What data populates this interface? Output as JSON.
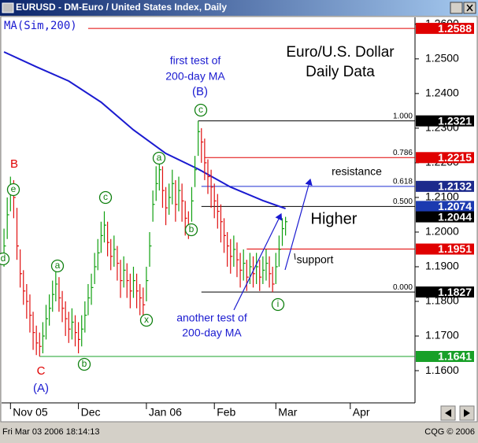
{
  "window_title": "EURUSD - DM-Euro / United States Index, Daily",
  "status": {
    "datetime": "Fri Mar 03 2006 18:14:13",
    "copyright": "CQG © 2006"
  },
  "chart_data": {
    "type": "ohlc",
    "study_label": "MA(Sim,200)",
    "x": [
      0,
      1,
      2,
      3,
      4,
      5,
      6,
      7,
      8,
      9,
      10,
      11,
      12,
      13,
      14,
      15,
      16,
      17,
      18,
      19,
      20,
      21,
      22,
      23,
      24,
      25,
      26,
      27,
      28,
      29,
      30,
      31,
      32,
      33,
      34,
      35,
      36,
      37,
      38,
      39,
      40,
      41,
      42,
      43,
      44,
      45,
      46,
      47,
      48,
      49,
      50,
      51,
      52,
      53,
      54,
      55,
      56,
      57,
      58,
      59,
      60,
      61,
      62,
      63,
      64,
      65,
      66,
      67,
      68,
      69,
      70,
      71,
      72,
      73,
      74,
      75,
      76,
      77,
      78,
      79,
      80,
      81,
      82,
      83,
      84,
      85,
      86,
      87
    ],
    "high": [
      1.201,
      1.21,
      1.216,
      1.215,
      1.207,
      1.195,
      1.189,
      1.185,
      1.182,
      1.177,
      1.173,
      1.171,
      1.174,
      1.179,
      1.182,
      1.186,
      1.189,
      1.187,
      1.183,
      1.18,
      1.177,
      1.178,
      1.176,
      1.174,
      1.176,
      1.18,
      1.185,
      1.188,
      1.194,
      1.198,
      1.203,
      1.206,
      1.203,
      1.198,
      1.199,
      1.196,
      1.192,
      1.193,
      1.191,
      1.188,
      1.19,
      1.188,
      1.185,
      1.184,
      1.19,
      1.2,
      1.212,
      1.219,
      1.222,
      1.219,
      1.213,
      1.214,
      1.218,
      1.215,
      1.216,
      1.214,
      1.209,
      1.206,
      1.213,
      1.222,
      1.2321,
      1.23,
      1.227,
      1.221,
      1.218,
      1.214,
      1.211,
      1.208,
      1.204,
      1.2,
      1.198,
      1.199,
      1.197,
      1.194,
      1.195,
      1.192,
      1.194,
      1.193,
      1.194,
      1.192,
      1.193,
      1.195,
      1.193,
      1.19,
      1.194,
      1.199,
      1.204,
      1.2044
    ],
    "low": [
      1.19,
      1.198,
      1.206,
      1.204,
      1.192,
      1.184,
      1.179,
      1.175,
      1.171,
      1.166,
      1.1645,
      1.1641,
      1.165,
      1.169,
      1.173,
      1.177,
      1.18,
      1.177,
      1.174,
      1.17,
      1.168,
      1.169,
      1.167,
      1.165,
      1.167,
      1.171,
      1.176,
      1.179,
      1.185,
      1.189,
      1.194,
      1.197,
      1.193,
      1.189,
      1.19,
      1.186,
      1.181,
      1.184,
      1.181,
      1.178,
      1.181,
      1.178,
      1.176,
      1.175,
      1.18,
      1.19,
      1.203,
      1.209,
      1.212,
      1.207,
      1.202,
      1.205,
      1.208,
      1.203,
      1.206,
      1.203,
      1.199,
      1.198,
      1.203,
      1.213,
      1.222,
      1.22,
      1.215,
      1.211,
      1.207,
      1.204,
      1.201,
      1.197,
      1.194,
      1.19,
      1.188,
      1.19,
      1.187,
      1.184,
      1.186,
      1.183,
      1.185,
      1.184,
      1.185,
      1.183,
      1.185,
      1.186,
      1.184,
      1.1827,
      1.185,
      1.19,
      1.196,
      1.199
    ],
    "close": [
      1.196,
      1.205,
      1.212,
      1.21,
      1.196,
      1.188,
      1.183,
      1.18,
      1.176,
      1.171,
      1.168,
      1.167,
      1.17,
      1.175,
      1.178,
      1.182,
      1.185,
      1.181,
      1.178,
      1.175,
      1.172,
      1.174,
      1.171,
      1.169,
      1.172,
      1.176,
      1.181,
      1.184,
      1.19,
      1.194,
      1.199,
      1.202,
      1.197,
      1.193,
      1.195,
      1.191,
      1.186,
      1.189,
      1.186,
      1.183,
      1.186,
      1.183,
      1.181,
      1.179,
      1.186,
      1.196,
      1.208,
      1.214,
      1.218,
      1.212,
      1.207,
      1.21,
      1.214,
      1.208,
      1.212,
      1.209,
      1.204,
      1.202,
      1.209,
      1.218,
      1.229,
      1.226,
      1.22,
      1.216,
      1.213,
      1.209,
      1.206,
      1.203,
      1.199,
      1.196,
      1.193,
      1.195,
      1.192,
      1.189,
      1.191,
      1.187,
      1.19,
      1.188,
      1.19,
      1.187,
      1.189,
      1.191,
      1.188,
      1.185,
      1.19,
      1.195,
      1.201,
      1.203
    ],
    "up_color": "#10a010",
    "down_color": "#e01010",
    "ma": {
      "x": [
        0,
        10,
        20,
        30,
        40,
        50,
        60,
        70,
        80,
        87
      ],
      "values": [
        1.252,
        1.2477,
        1.2436,
        1.2375,
        1.2295,
        1.2227,
        1.2182,
        1.213,
        1.2091,
        1.2068
      ],
      "color": "#1a1ad0"
    },
    "xlim": [
      -0.75,
      127
    ],
    "xticks": [
      {
        "value": 2,
        "label": "Nov 05"
      },
      {
        "value": 23,
        "label": "Dec"
      },
      {
        "value": 44,
        "label": "Jan 06"
      },
      {
        "value": 65,
        "label": "Feb"
      },
      {
        "value": 84,
        "label": "Mar"
      },
      {
        "value": 107,
        "label": "Apr"
      }
    ],
    "ylim": [
      1.1507,
      1.262
    ],
    "yticks": [
      {
        "value": 1.16,
        "label": "1.1600"
      },
      {
        "value": 1.17,
        "label": "1.1700"
      },
      {
        "value": 1.18,
        "label": "1.1800"
      },
      {
        "value": 1.19,
        "label": "1.1900"
      },
      {
        "value": 1.2,
        "label": "1.2000"
      },
      {
        "value": 1.21,
        "label": "1.2100"
      },
      {
        "value": 1.22,
        "label": "1.2200"
      },
      {
        "value": 1.23,
        "label": "1.2300"
      },
      {
        "value": 1.24,
        "label": "1.2400"
      },
      {
        "value": 1.25,
        "label": "1.2500"
      },
      {
        "value": 1.26,
        "label": "1.2600"
      }
    ],
    "levels": [
      {
        "value": 1.2588,
        "color": "#e00000",
        "line_color": "#e00000",
        "start": 26
      },
      {
        "value": 1.2321,
        "color": "#000000",
        "line_color": "#000000",
        "start": 60,
        "ratio": {
          "value": 1,
          "label": "1.000"
        }
      },
      {
        "value": 1.2215,
        "color": "#e00000",
        "line_color": "#e00000",
        "start": 62,
        "ratio": 0.786
      },
      {
        "value": 1.2132,
        "color": "#1c2a8c",
        "line_color": "#1c2fd0",
        "start": 61,
        "ratio": 0.618
      },
      {
        "value": 1.2074,
        "color": "#1c3ab0",
        "line_color": "#000000",
        "start": 61,
        "ratio": {
          "value": 0.5,
          "label": "0.500"
        }
      },
      {
        "value": 1.2044,
        "color": "#000000"
      },
      {
        "value": 1.1951,
        "color": "#e00000",
        "line_color": "#e00000",
        "start": 75
      },
      {
        "value": 1.1827,
        "color": "#000000",
        "line_color": "#000000",
        "start": 61,
        "ratio": {
          "value": 0,
          "label": "0.000"
        }
      },
      {
        "value": 1.1641,
        "color": "#18a028",
        "line_color": "#18a028",
        "start": 11
      }
    ],
    "annotations": [
      {
        "lines": [
          "first test of",
          "200-day MA"
        ],
        "color": "#1a1ad0"
      },
      {
        "lines": [
          "Euro/U.S. Dollar",
          "Daily Data"
        ],
        "color": "#000000"
      },
      {
        "lines": [
          "resistance"
        ],
        "color": "#000000"
      },
      {
        "lines": [
          "Higher"
        ],
        "color": "#000000"
      },
      {
        "lines": [
          "support"
        ],
        "color": "#000000"
      },
      {
        "lines": [
          "another test of",
          "200-day MA"
        ],
        "color": "#1a1ad0"
      },
      {
        "lines": [
          "B"
        ],
        "color": "#e00000"
      },
      {
        "lines": [
          "C"
        ],
        "color": "#e00000"
      },
      {
        "lines": [
          "(A)"
        ],
        "color": "#1a1ad0"
      },
      {
        "lines": [
          "(B)"
        ],
        "color": "#1a1ad0"
      }
    ],
    "wave_labels": [
      "d",
      "e",
      "a",
      "c",
      "b",
      "x",
      "a",
      "b",
      "c",
      "i"
    ],
    "wave_color": "#108010"
  }
}
